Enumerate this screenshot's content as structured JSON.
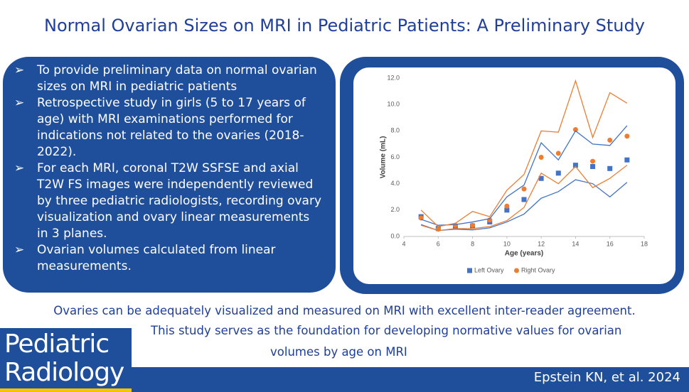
{
  "title": "Normal Ovarian Sizes on MRI in Pediatric Patients: A Preliminary Study",
  "bullets": [
    "To provide preliminary data on normal ovarian sizes on MRI in pediatric patients",
    "Retrospective study in girls (5 to 17 years of age) with MRI examinations performed for indications not related to the ovaries (2018-2022).",
    "For each MRI, coronal T2W SSFSE and axial T2W FS images were independently reviewed by three pediatric radiologists, recording ovary visualization and ovary linear measurements in 3 planes.",
    "Ovarian volumes calculated from linear measurements."
  ],
  "chart_data": {
    "type": "scatter",
    "x_label": "Age (years)",
    "y_label": "Volume (mL)",
    "x": [
      5,
      6,
      7,
      8,
      9,
      10,
      11,
      12,
      13,
      14,
      15,
      16,
      17
    ],
    "series": [
      {
        "name": "Left Ovary",
        "color": "#4472c4",
        "marker": "square",
        "values": [
          1.5,
          0.6,
          0.75,
          0.8,
          1.1,
          2.0,
          2.8,
          4.4,
          4.8,
          5.4,
          5.3,
          5.15,
          5.8
        ]
      },
      {
        "name": "Right Ovary",
        "color": "#ed7d31",
        "marker": "circle",
        "values": [
          1.4,
          0.55,
          0.85,
          0.85,
          1.25,
          2.3,
          3.6,
          6.0,
          6.3,
          8.1,
          5.7,
          7.3,
          7.6
        ]
      },
      {
        "color": "#4472c4",
        "marker": "line",
        "values": [
          1.3,
          0.85,
          0.9,
          1.1,
          1.35,
          3.0,
          3.9,
          7.1,
          5.8,
          8.0,
          7.0,
          6.9,
          8.4
        ]
      },
      {
        "color": "#4472c4",
        "marker": "line",
        "values": [
          0.9,
          0.45,
          0.55,
          0.5,
          0.65,
          1.1,
          1.7,
          2.9,
          3.4,
          4.3,
          4.0,
          3.0,
          4.1
        ]
      },
      {
        "color": "#ed7d31",
        "marker": "line",
        "values": [
          2.0,
          0.75,
          1.0,
          1.9,
          1.5,
          3.5,
          4.7,
          8.0,
          7.9,
          11.8,
          7.5,
          10.9,
          10.1
        ]
      },
      {
        "color": "#ed7d31",
        "marker": "line",
        "values": [
          0.85,
          0.45,
          0.6,
          0.6,
          0.75,
          1.2,
          2.2,
          4.8,
          4.0,
          5.3,
          3.7,
          4.4,
          5.4
        ]
      }
    ],
    "xlim": [
      4,
      18
    ],
    "xticks": [
      4,
      6,
      8,
      10,
      12,
      14,
      16,
      18
    ],
    "ylim": [
      0,
      12
    ],
    "yticks": [
      {
        "value": 0,
        "label": "0.0"
      },
      {
        "value": 2,
        "label": "2.0"
      },
      {
        "value": 4,
        "label": "4.0"
      },
      {
        "value": 6,
        "label": "6.0"
      },
      {
        "value": 8,
        "label": "8.0"
      },
      {
        "value": 10,
        "label": "10.0"
      },
      {
        "value": 12,
        "label": "12.0"
      }
    ],
    "grid": false
  },
  "conclusions": [
    "Ovaries can be adequately visualized and measured on MRI with excellent inter-reader agreement.",
    "This study serves as the foundation for developing normative values for ovarian",
    "volumes by age on MRI"
  ],
  "logo": [
    "Pediatric",
    "Radiology"
  ],
  "citation": "Epstein KN, et al. 2024"
}
